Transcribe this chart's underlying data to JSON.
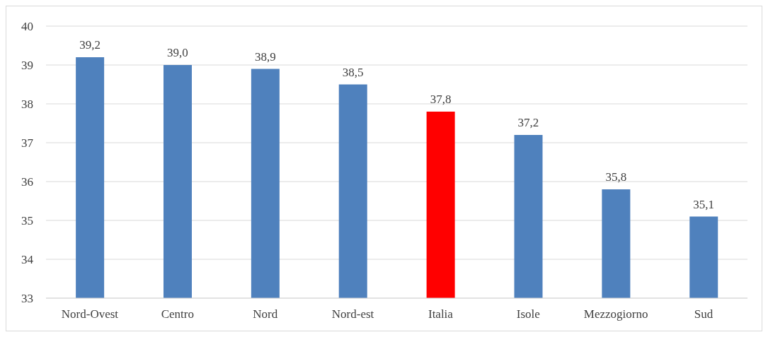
{
  "chart_data": {
    "type": "bar",
    "categories": [
      "Nord-Ovest",
      "Centro",
      "Nord",
      "Nord-est",
      "Italia",
      "Isole",
      "Mezzogiorno",
      "Sud"
    ],
    "values": [
      39.2,
      39.0,
      38.9,
      38.5,
      37.8,
      37.2,
      35.8,
      35.1
    ],
    "colors": [
      "#4f81bd",
      "#4f81bd",
      "#4f81bd",
      "#4f81bd",
      "#ff0000",
      "#4f81bd",
      "#4f81bd",
      "#4f81bd"
    ],
    "value_labels": [
      "39,2",
      "39,0",
      "38,9",
      "38,5",
      "37,8",
      "37,2",
      "35,8",
      "35,1"
    ],
    "ylim": [
      33,
      40
    ],
    "yticks": [
      33,
      34,
      35,
      36,
      37,
      38,
      39,
      40
    ],
    "grid": "y"
  }
}
